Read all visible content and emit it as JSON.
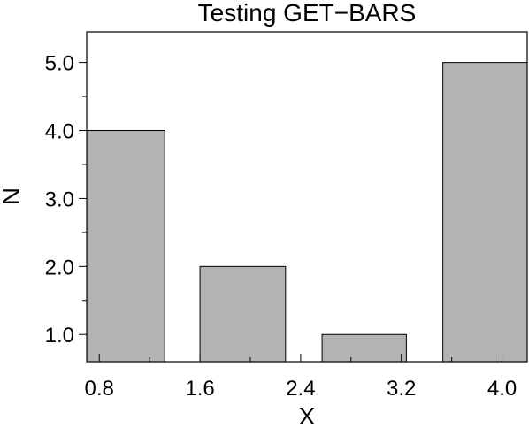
{
  "chart_data": {
    "type": "bar",
    "title": "Testing GET−BARS",
    "xlabel": "X",
    "ylabel": "N",
    "xlim": [
      0.7,
      4.2
    ],
    "ylim": [
      0.6,
      5.45
    ],
    "xticks": [
      0.8,
      1.6,
      2.4,
      3.2,
      4.0
    ],
    "xtick_labels": [
      "0.8",
      "1.6",
      "2.4",
      "3.2",
      "4.0"
    ],
    "yticks": [
      1.0,
      2.0,
      3.0,
      4.0,
      5.0
    ],
    "ytick_labels": [
      "1.0",
      "2.0",
      "3.0",
      "4.0",
      "5.0"
    ],
    "bars": [
      {
        "x0": 0.7,
        "x1": 1.32,
        "value": 4
      },
      {
        "x0": 1.6,
        "x1": 2.28,
        "value": 2
      },
      {
        "x0": 2.57,
        "x1": 3.24,
        "value": 1
      },
      {
        "x0": 3.53,
        "x1": 4.2,
        "value": 5
      }
    ],
    "bar_color": "#b3b3b3",
    "grid": false,
    "legend": "none"
  }
}
